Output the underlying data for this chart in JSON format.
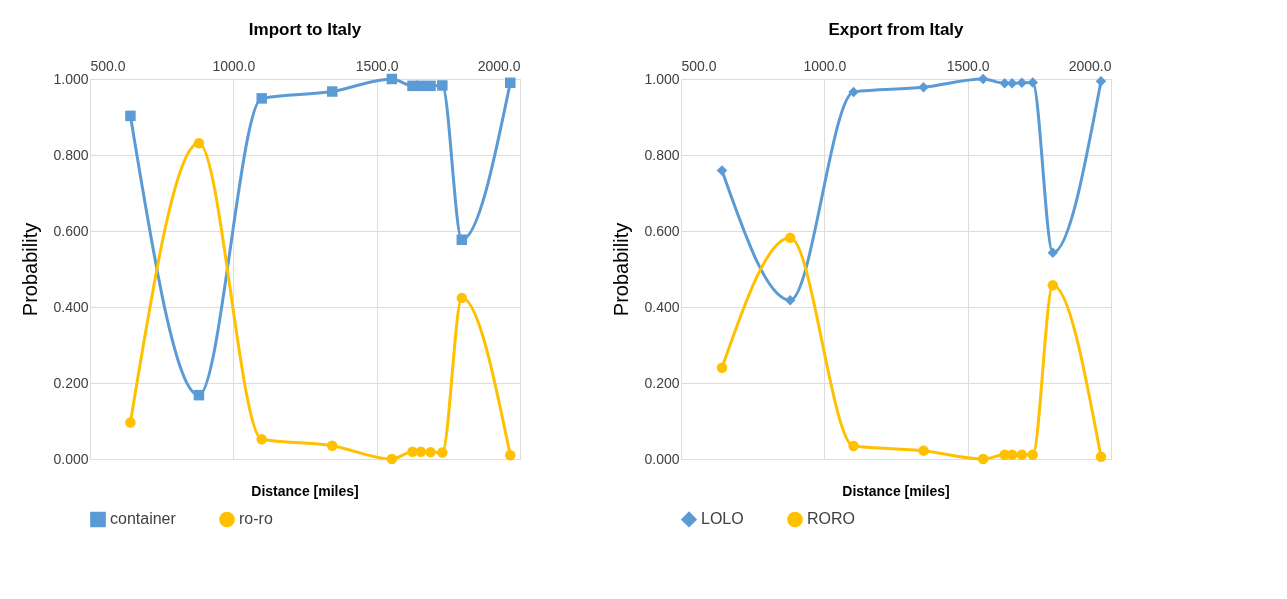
{
  "chart_data": [
    {
      "type": "line",
      "title": "Import to Italy",
      "xlabel": "Distance [miles]",
      "ylabel": "Probability",
      "x": [
        641,
        880,
        1099,
        1345,
        1553,
        1625,
        1654,
        1688,
        1729,
        1797,
        1966
      ],
      "series": [
        {
          "name": "container",
          "color": "#5b9bd5",
          "marker": "square",
          "values": [
            0.903,
            0.168,
            0.949,
            0.967,
            1.0,
            0.982,
            0.982,
            0.982,
            0.983,
            0.577,
            0.99
          ]
        },
        {
          "name": "ro-ro",
          "color": "#ffc000",
          "marker": "circle",
          "values": [
            0.096,
            0.831,
            0.052,
            0.035,
            0.0,
            0.019,
            0.019,
            0.018,
            0.017,
            0.424,
            0.01
          ]
        }
      ],
      "xlim": [
        500,
        2000
      ],
      "xticks": [
        {
          "value": 500,
          "label": "500.0"
        },
        {
          "value": 1000,
          "label": "1000.0"
        },
        {
          "value": 1500,
          "label": "1500.0"
        },
        {
          "value": 2000,
          "label": "2000.0"
        }
      ],
      "ylim": [
        0,
        1
      ],
      "yticks": [
        {
          "value": 0,
          "label": "0.000"
        },
        {
          "value": 0.2,
          "label": "0.200"
        },
        {
          "value": 0.4,
          "label": "0.400"
        },
        {
          "value": 0.6,
          "label": "0.600"
        },
        {
          "value": 0.8,
          "label": "0.800"
        },
        {
          "value": 1,
          "label": "1.000"
        }
      ],
      "grid": true,
      "legend": "bottom",
      "line_style": "solid"
    },
    {
      "type": "line",
      "title": "Export from Italy",
      "xlabel": "Distance [miles]",
      "ylabel": "Probability",
      "x": [
        643,
        881,
        1102,
        1346,
        1554,
        1629,
        1655,
        1689,
        1727,
        1797,
        1965
      ],
      "series": [
        {
          "name": "LOLO",
          "color": "#5b9bd5",
          "marker": "diamond",
          "values": [
            0.759,
            0.418,
            0.966,
            0.978,
            1.0,
            0.989,
            0.989,
            0.99,
            0.991,
            0.543,
            0.994
          ]
        },
        {
          "name": "RORO",
          "color": "#ffc000",
          "marker": "circle",
          "values": [
            0.24,
            0.582,
            0.034,
            0.022,
            0.0,
            0.011,
            0.011,
            0.011,
            0.011,
            0.457,
            0.006
          ]
        }
      ],
      "xlim": [
        500,
        2000
      ],
      "xticks": [
        {
          "value": 500,
          "label": "500.0"
        },
        {
          "value": 1000,
          "label": "1000.0"
        },
        {
          "value": 1500,
          "label": "1500.0"
        },
        {
          "value": 2000,
          "label": "2000.0"
        }
      ],
      "ylim": [
        0,
        1
      ],
      "yticks": [
        {
          "value": 0,
          "label": "0.000"
        },
        {
          "value": 0.2,
          "label": "0.200"
        },
        {
          "value": 0.4,
          "label": "0.400"
        },
        {
          "value": 0.6,
          "label": "0.600"
        },
        {
          "value": 0.8,
          "label": "0.800"
        },
        {
          "value": 1,
          "label": "1.000"
        }
      ],
      "grid": true,
      "legend": "bottom",
      "line_style": "solid"
    }
  ]
}
